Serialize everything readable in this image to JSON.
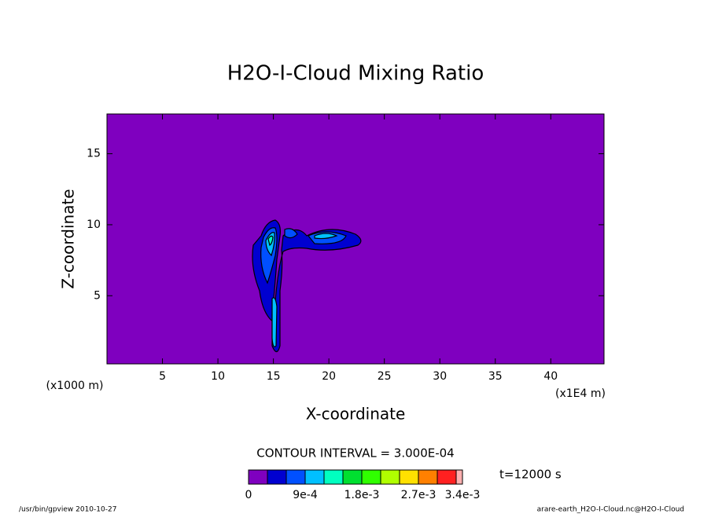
{
  "chart_data": {
    "type": "contour",
    "title": "H2O-I-Cloud Mixing Ratio",
    "x_label": "X-coordinate",
    "y_label": "Z-coordinate",
    "x_unit_left": "(x1000 m)",
    "x_unit_right": "(x1E4 m)",
    "xlim": [
      0,
      44.8
    ],
    "ylim": [
      0.2,
      17.8
    ],
    "xticks": [
      5,
      10,
      15,
      20,
      25,
      30,
      35,
      40
    ],
    "yticks": [
      5,
      10,
      15
    ],
    "background_color": "#7f00bf",
    "contour_interval": "CONTOUR INTERVAL = 3.000E-04",
    "time_label": "t=12000 s",
    "colorbar": {
      "colors": [
        "#7f00bf",
        "#0000d0",
        "#0050ff",
        "#00c0ff",
        "#00ffc0",
        "#00e030",
        "#30ff00",
        "#b0ff00",
        "#ffe000",
        "#ff8000",
        "#ff2020",
        "#ffb0b0"
      ],
      "interval": 0.0003,
      "max": 0.0034,
      "ticks": [
        0,
        {
          "value": 0.0009,
          "label": "9e-4"
        },
        {
          "value": 0.0018,
          "label": "1.8e-3"
        },
        {
          "value": 0.0027,
          "label": "2.7e-3"
        },
        {
          "value": 0.0034,
          "label": "3.4e-3"
        }
      ]
    },
    "footer_left": "/usr/bin/gpview  2010-10-27",
    "footer_right": "arare-earth_H2O-I-Cloud.nc@H2O-I-Cloud"
  }
}
